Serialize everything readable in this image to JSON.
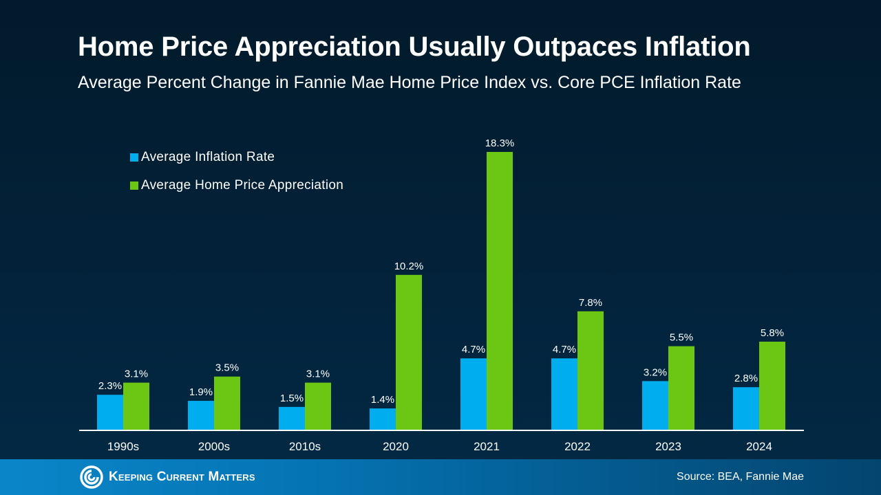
{
  "colors": {
    "inflation": "#00aeef",
    "home_price": "#6cc614",
    "axis": "#ffffff",
    "label": "#ffffff"
  },
  "chart_data": {
    "type": "bar",
    "title": "Home Price Appreciation Usually Outpaces Inflation",
    "subtitle": "Average Percent Change in Fannie Mae Home Price Index vs. Core PCE Inflation Rate",
    "xlabel": "",
    "ylabel": "",
    "categories": [
      "1990s",
      "2000s",
      "2010s",
      "2020",
      "2021",
      "2022",
      "2023",
      "2024"
    ],
    "series": [
      {
        "name": "Average Inflation Rate",
        "values": [
          2.3,
          1.9,
          1.5,
          1.4,
          4.7,
          4.7,
          3.2,
          2.8
        ]
      },
      {
        "name": "Average Home Price Appreciation",
        "values": [
          3.1,
          3.5,
          3.1,
          10.2,
          18.3,
          7.8,
          5.5,
          5.8
        ]
      }
    ],
    "data_label_suffix": "%",
    "ylim": [
      0,
      18.3
    ],
    "grid": false,
    "legend_position": "top-left"
  },
  "legend": {
    "items": [
      {
        "label": "Average Inflation Rate"
      },
      {
        "label": "Average Home Price Appreciation"
      }
    ]
  },
  "footer": {
    "logo_text": "Keeping Current Matters",
    "logo_icon": "swirl-logo-icon",
    "source": "Source: BEA, Fannie Mae"
  }
}
